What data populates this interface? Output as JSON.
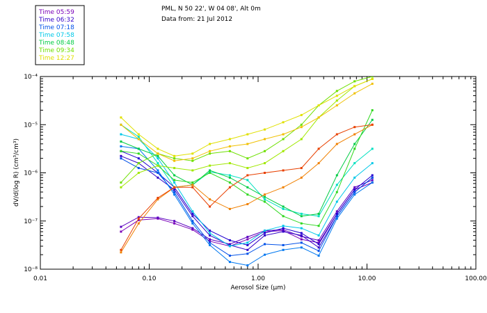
{
  "header": {
    "line1": "PML, N 50 22', W 04 08', Alt 0m",
    "line2": "Data from: 21 Jul 2012"
  },
  "legend": {
    "entries": [
      {
        "label": "Time 05:59",
        "color": "#7a00b8"
      },
      {
        "label": "Time 06:32",
        "color": "#3200c8"
      },
      {
        "label": "Time 07:18",
        "color": "#0050e8"
      },
      {
        "label": "Time 07:58",
        "color": "#00c8e8"
      },
      {
        "label": "Time 08:48",
        "color": "#00cc44"
      },
      {
        "label": "Time 09:34",
        "color": "#6ee000"
      },
      {
        "label": "Time 12:27",
        "color": "#e0e000"
      }
    ]
  },
  "chart_data": {
    "type": "line",
    "title": "",
    "xlabel": "Aerosol Size (μm)",
    "ylabel": "dV/d(log R) (cm³/cm³)",
    "xscale": "log",
    "yscale": "log",
    "xlim": [
      0.01,
      100.0
    ],
    "ylim_exp": [
      -8,
      -4
    ],
    "x_ticks": [
      "0.01",
      "0.10",
      "1.00",
      "10.00",
      "100.00"
    ],
    "y_ticks": [
      "10⁻⁸",
      "10⁻⁷",
      "10⁻⁶",
      "10⁻⁵",
      "10⁻⁴"
    ],
    "x": [
      0.055,
      0.08,
      0.12,
      0.17,
      0.25,
      0.36,
      0.55,
      0.8,
      1.15,
      1.7,
      2.5,
      3.6,
      5.3,
      7.7,
      11.2
    ],
    "series": [
      {
        "name": "05:59 a",
        "color": "#7a00b8",
        "values": [
          -7.22,
          -6.98,
          -6.95,
          -7.05,
          -7.18,
          -7.42,
          -7.52,
          -7.38,
          -7.22,
          -7.2,
          -7.38,
          -7.45,
          -6.85,
          -6.35,
          -6.2
        ]
      },
      {
        "name": "05:59 b",
        "color": "#5a00c0",
        "values": [
          -7.12,
          -6.92,
          -6.93,
          -7.0,
          -7.15,
          -7.38,
          -7.48,
          -7.33,
          -7.2,
          -7.18,
          -7.32,
          -7.4,
          -6.8,
          -6.3,
          -6.15
        ]
      },
      {
        "name": "06:32 a",
        "color": "#3200c8",
        "values": [
          -5.65,
          -5.8,
          -6.1,
          -6.35,
          -6.9,
          -7.3,
          -7.5,
          -7.6,
          -7.3,
          -7.22,
          -7.3,
          -7.55,
          -6.9,
          -6.4,
          -6.1
        ]
      },
      {
        "name": "06:32 b",
        "color": "#2000d0",
        "values": [
          -5.55,
          -5.7,
          -6.0,
          -6.3,
          -6.85,
          -7.2,
          -7.4,
          -7.5,
          -7.25,
          -7.15,
          -7.25,
          -7.48,
          -6.85,
          -6.35,
          -6.05
        ]
      },
      {
        "name": "07:18 a",
        "color": "#0050e8",
        "values": [
          -5.7,
          -5.9,
          -6.0,
          -6.4,
          -7.0,
          -7.45,
          -7.72,
          -7.68,
          -7.48,
          -7.5,
          -7.45,
          -7.62,
          -6.9,
          -6.4,
          -6.1
        ]
      },
      {
        "name": "07:18 b",
        "color": "#0078f0",
        "values": [
          -5.45,
          -5.5,
          -5.95,
          -6.45,
          -7.05,
          -7.5,
          -7.85,
          -7.92,
          -7.7,
          -7.6,
          -7.55,
          -7.72,
          -6.95,
          -6.45,
          -6.2
        ]
      },
      {
        "name": "07:58 a",
        "color": "#00c8e8",
        "values": [
          -5.2,
          -5.3,
          -5.7,
          -6.2,
          -6.8,
          -7.25,
          -7.52,
          -7.45,
          -7.2,
          -7.1,
          -7.15,
          -7.3,
          -6.6,
          -6.1,
          -5.8
        ]
      },
      {
        "name": "07:58 b",
        "color": "#00e0c0",
        "values": [
          -5.0,
          -5.25,
          -5.8,
          -6.3,
          -6.25,
          -5.98,
          -6.05,
          -6.15,
          -6.55,
          -6.75,
          -6.85,
          -6.9,
          -6.25,
          -5.8,
          -5.5
        ]
      },
      {
        "name": "08:48 a",
        "color": "#00cc44",
        "values": [
          -5.35,
          -5.5,
          -5.65,
          -6.05,
          -6.25,
          -5.95,
          -6.1,
          -6.3,
          -6.5,
          -6.7,
          -6.9,
          -6.85,
          -6.05,
          -5.4,
          -4.9
        ]
      },
      {
        "name": "08:48 b",
        "color": "#30d820",
        "values": [
          -5.55,
          -5.6,
          -5.85,
          -6.15,
          -6.2,
          -6.0,
          -6.2,
          -6.45,
          -6.6,
          -6.9,
          -7.05,
          -7.1,
          -6.4,
          -5.5,
          -4.7
        ]
      },
      {
        "name": "09:34 a",
        "color": "#6ee000",
        "values": [
          -6.2,
          -5.8,
          -5.6,
          -5.7,
          -5.75,
          -5.6,
          -5.55,
          -5.7,
          -5.55,
          -5.3,
          -5.0,
          -4.6,
          -4.3,
          -4.1,
          -4.0
        ]
      },
      {
        "name": "09:34 b",
        "color": "#a0e800",
        "values": [
          -6.3,
          -6.0,
          -5.85,
          -5.9,
          -5.95,
          -5.85,
          -5.8,
          -5.9,
          -5.8,
          -5.55,
          -5.3,
          -4.85,
          -4.5,
          -4.2,
          -4.05
        ]
      },
      {
        "name": "12:27 a",
        "color": "#e0e000",
        "values": [
          -4.85,
          -5.2,
          -5.5,
          -5.65,
          -5.6,
          -5.4,
          -5.3,
          -5.2,
          -5.1,
          -4.95,
          -4.8,
          -4.6,
          -4.4,
          -4.2,
          -4.05
        ]
      },
      {
        "name": "12:27 b",
        "color": "#f0c000",
        "values": [
          -5.0,
          -5.3,
          -5.6,
          -5.75,
          -5.7,
          -5.55,
          -5.45,
          -5.4,
          -5.3,
          -5.2,
          -5.05,
          -4.85,
          -4.6,
          -4.35,
          -4.15
        ]
      },
      {
        "name": "12:27 c",
        "color": "#f08000",
        "values": [
          -7.65,
          -7.05,
          -6.55,
          -6.3,
          -6.25,
          -6.55,
          -6.75,
          -6.65,
          -6.45,
          -6.3,
          -6.1,
          -5.8,
          -5.4,
          -5.2,
          -5.0
        ]
      },
      {
        "name": "12:27 d",
        "color": "#e84000",
        "values": [
          -7.6,
          -6.95,
          -6.52,
          -6.3,
          -6.3,
          -6.7,
          -6.3,
          -6.05,
          -6.0,
          -5.95,
          -5.9,
          -5.5,
          -5.2,
          -5.05,
          -5.0
        ]
      }
    ]
  }
}
